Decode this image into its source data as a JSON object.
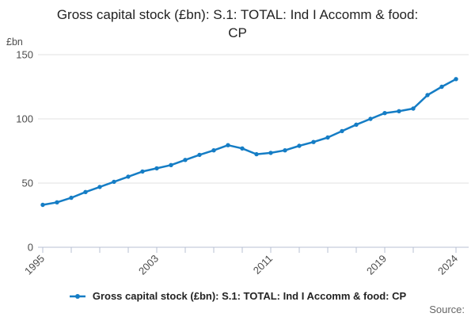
{
  "header": {
    "title": "Gross capital stock (£bn): S.1: TOTAL: Ind I Accomm & food: CP"
  },
  "axes": {
    "y_unit_label": "£bn"
  },
  "legend": {
    "label": "Gross capital stock (£bn): S.1: TOTAL: Ind I Accomm & food: CP"
  },
  "footer": {
    "source_label": "Source:"
  },
  "colors": {
    "line": "#157dc5",
    "grid": "#e2e2e2",
    "axis": "#b9c1d3",
    "tick_text": "#4d4d4d",
    "title_text": "#222222",
    "source_text": "#666666"
  },
  "chart_data": {
    "type": "line",
    "title": "Gross capital stock (£bn): S.1: TOTAL: Ind I Accomm & food: CP",
    "xlabel": "",
    "ylabel": "£bn",
    "x": [
      1995,
      1996,
      1997,
      1998,
      1999,
      2000,
      2001,
      2002,
      2003,
      2004,
      2005,
      2006,
      2007,
      2008,
      2009,
      2010,
      2011,
      2012,
      2013,
      2014,
      2015,
      2016,
      2017,
      2018,
      2019,
      2020,
      2021,
      2022,
      2023,
      2024
    ],
    "values": [
      33,
      35,
      38.5,
      43,
      47,
      51,
      55,
      59,
      61.5,
      64,
      68,
      72,
      75.5,
      79.5,
      77,
      72.5,
      73.5,
      75.5,
      79,
      82,
      85.5,
      90.5,
      95.5,
      100,
      104.5,
      106,
      108,
      118.5,
      125,
      131
    ],
    "series_name": "Gross capital stock (£bn): S.1: TOTAL: Ind I Accomm & food: CP",
    "ylim": [
      0,
      150
    ],
    "yticks": [
      0,
      50,
      100,
      150
    ],
    "xticks": [
      1995,
      1997,
      1999,
      2001,
      2003,
      2005,
      2007,
      2009,
      2011,
      2013,
      2015,
      2017,
      2019,
      2021,
      2024
    ],
    "xticks_labeled": [
      1995,
      2003,
      2011,
      2019,
      2024
    ],
    "grid": "horizontal",
    "legend_position": "bottom",
    "markers": true
  }
}
